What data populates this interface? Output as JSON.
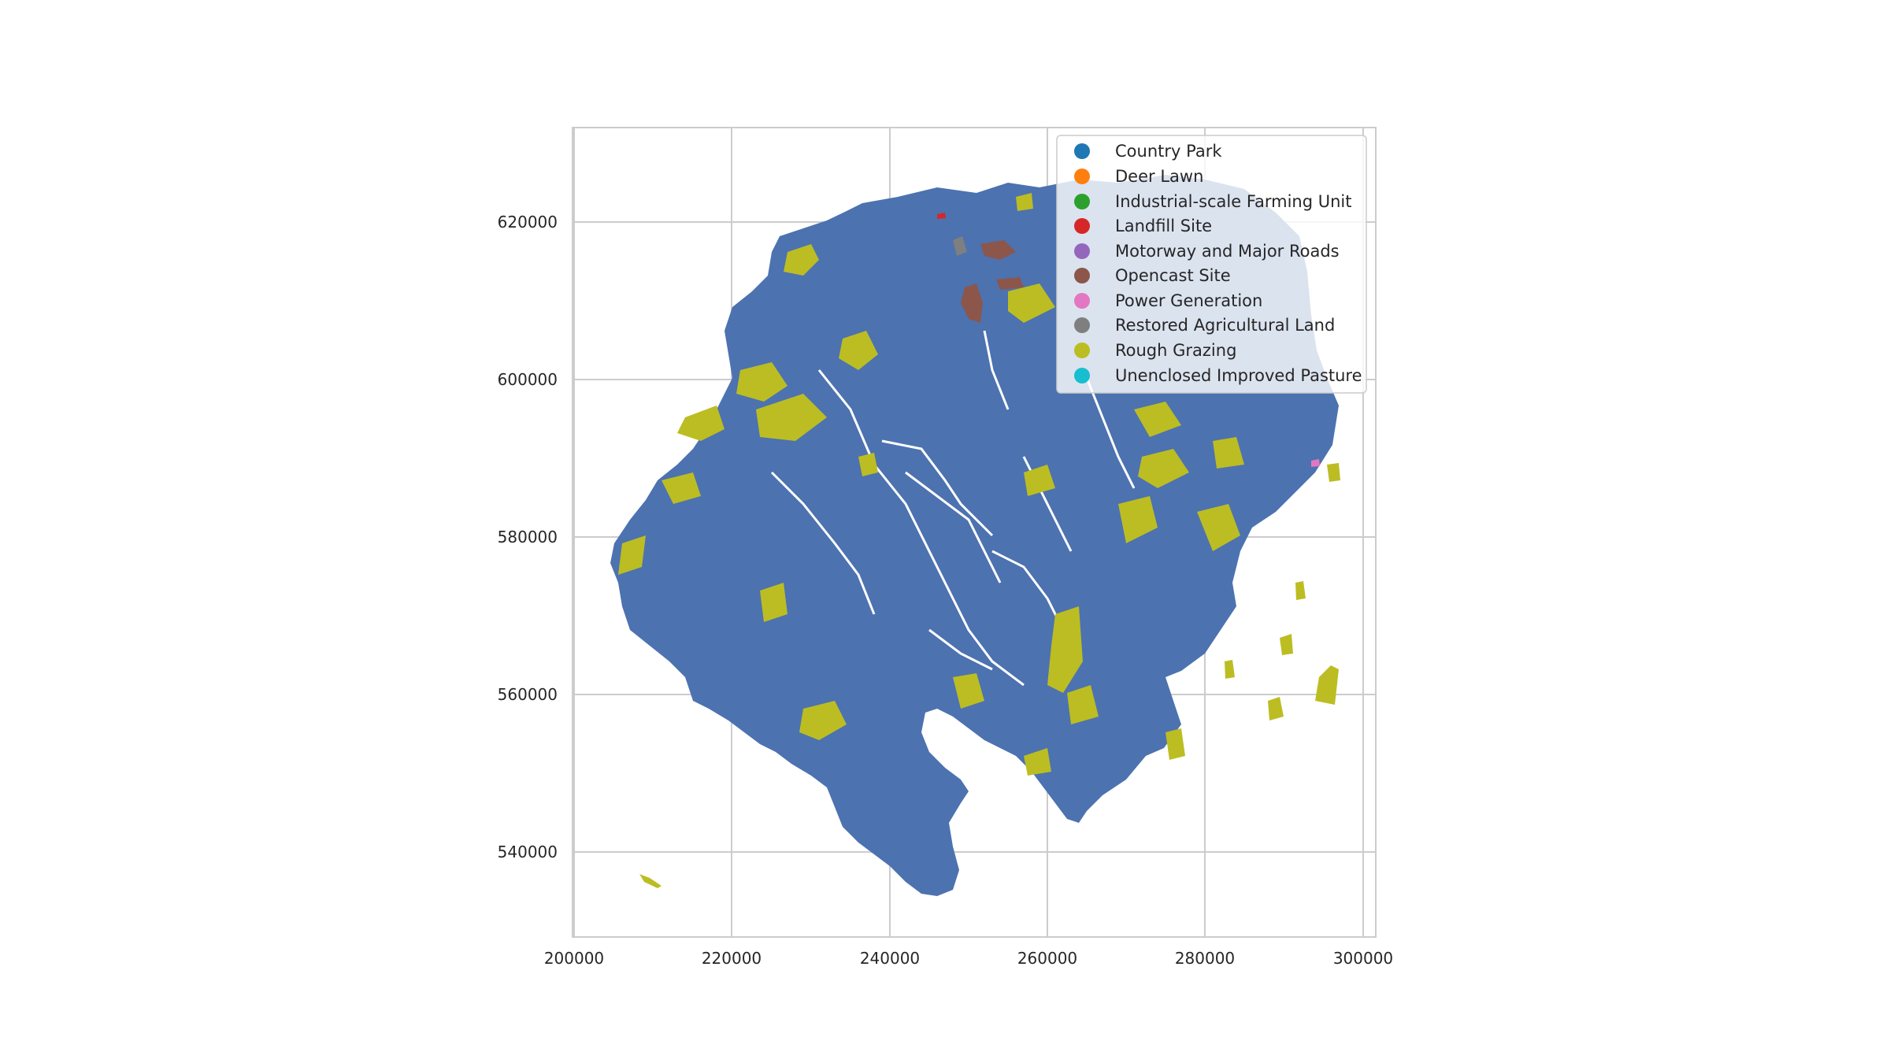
{
  "map": {
    "x_ticks": [
      "200000",
      "220000",
      "240000",
      "260000",
      "280000",
      "300000"
    ],
    "y_ticks": [
      "620000",
      "600000",
      "580000",
      "560000",
      "540000"
    ],
    "colors": {
      "land": "#4c72b0",
      "grid": "#cccccc",
      "frame": "#cccccc"
    },
    "legend": [
      {
        "label": "Country Park",
        "color": "#1f77b4"
      },
      {
        "label": "Deer Lawn",
        "color": "#ff7f0e"
      },
      {
        "label": "Industrial-scale Farming Unit",
        "color": "#2ca02c"
      },
      {
        "label": "Landfill Site",
        "color": "#d62728"
      },
      {
        "label": "Motorway and Major Roads",
        "color": "#9467bd"
      },
      {
        "label": "Opencast Site",
        "color": "#8c564b"
      },
      {
        "label": "Power Generation",
        "color": "#e377c2"
      },
      {
        "label": "Restored Agricultural Land",
        "color": "#7f7f7f"
      },
      {
        "label": "Rough Grazing",
        "color": "#bcbd22"
      },
      {
        "label": "Unenclosed Improved Pasture",
        "color": "#17becf"
      }
    ]
  }
}
